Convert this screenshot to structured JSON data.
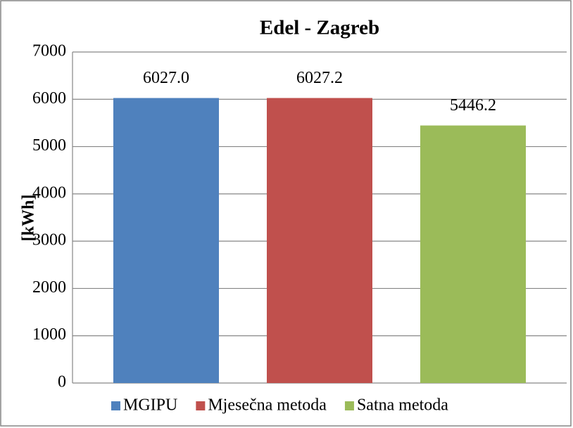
{
  "chart_data": {
    "type": "bar",
    "title": "Edel - Zagreb",
    "y_label": "[kWh]",
    "series": [
      {
        "name": "MGIPU",
        "color": "#4f81bd",
        "values": [
          6027.0
        ],
        "value_labels": [
          "6027.0"
        ]
      },
      {
        "name": "Mjesečna metoda",
        "color": "#c0504d",
        "values": [
          6027.2
        ],
        "value_labels": [
          "6027.2"
        ]
      },
      {
        "name": "Satna metoda",
        "color": "#9bbb59",
        "values": [
          5446.2
        ],
        "value_labels": [
          "5446.2"
        ]
      }
    ],
    "ylim": [
      0,
      7000
    ],
    "yticks": [
      0,
      1000,
      2000,
      3000,
      4000,
      5000,
      6000,
      7000
    ],
    "grid": true,
    "legend": "bottom"
  }
}
